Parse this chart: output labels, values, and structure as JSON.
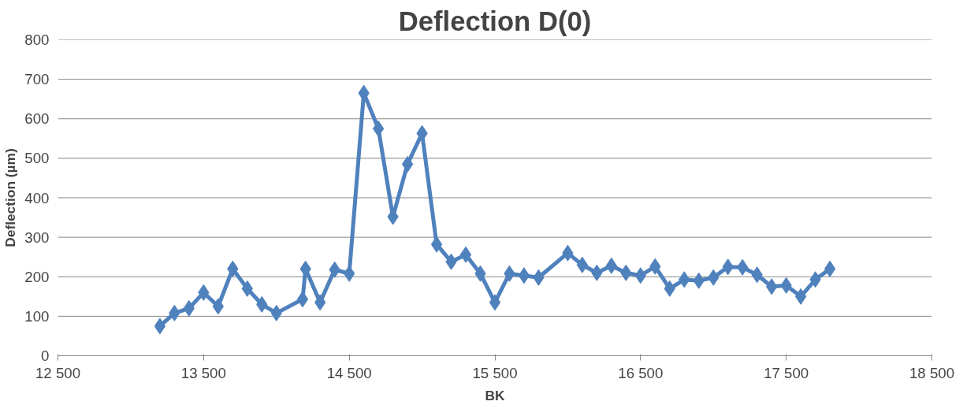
{
  "chart_data": {
    "type": "line",
    "title": "Deflection D(0)",
    "xlabel": "BK",
    "ylabel": "Deflection (µm)",
    "x": [
      13200,
      13300,
      13400,
      13500,
      13600,
      13700,
      13800,
      13900,
      14000,
      14180,
      14200,
      14300,
      14400,
      14500,
      14600,
      14700,
      14800,
      14900,
      15000,
      15100,
      15200,
      15300,
      15400,
      15500,
      15600,
      15700,
      15800,
      16000,
      16100,
      16200,
      16300,
      16400,
      16500,
      16600,
      16700,
      16800,
      16900,
      17000,
      17100,
      17200,
      17300,
      17400,
      17500,
      17600,
      17700,
      17800
    ],
    "series": [
      {
        "color": "#4f81bd",
        "values": [
          75,
          108,
          120,
          160,
          125,
          220,
          170,
          130,
          108,
          143,
          220,
          135,
          218,
          208,
          665,
          575,
          352,
          485,
          563,
          282,
          238,
          256,
          208,
          135,
          208,
          203,
          198,
          260,
          230,
          210,
          228,
          210,
          203,
          226,
          170,
          193,
          190,
          198,
          225,
          224,
          205,
          175,
          178,
          150,
          193,
          220
        ]
      }
    ],
    "xlim": [
      12500,
      18500
    ],
    "ylim": [
      0,
      800
    ],
    "xticks": [
      {
        "value": 12500,
        "label": "12 500"
      },
      {
        "value": 13500,
        "label": "13 500"
      },
      {
        "value": 14500,
        "label": "14 500"
      },
      {
        "value": 15500,
        "label": "15 500"
      },
      {
        "value": 16500,
        "label": "16 500"
      },
      {
        "value": 17500,
        "label": "17 500"
      },
      {
        "value": 18500,
        "label": "18 500"
      }
    ],
    "yticks": [
      0,
      100,
      200,
      300,
      400,
      500,
      600,
      700,
      800
    ],
    "grid": "y",
    "marker": "diamond",
    "line_style": "solid"
  }
}
